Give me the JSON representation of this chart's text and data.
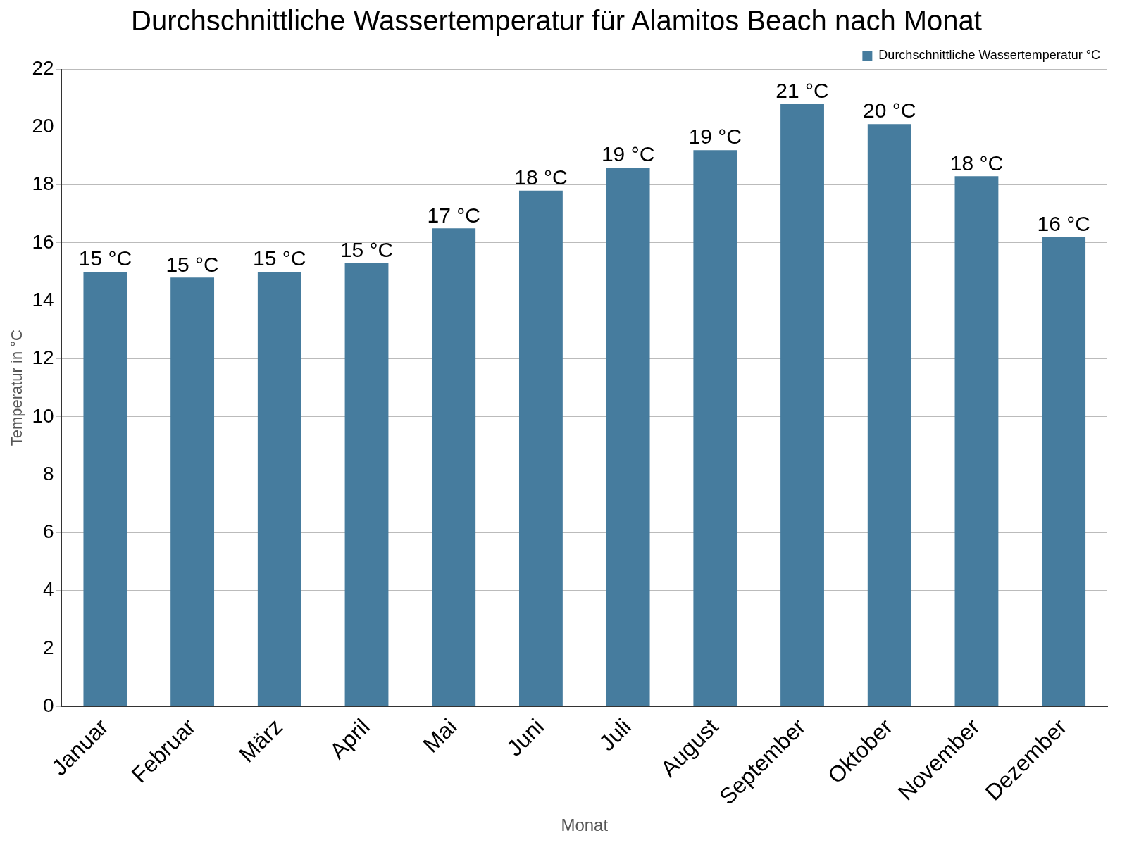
{
  "chart_data": {
    "type": "bar",
    "title": "Durchschnittliche Wassertemperatur für Alamitos Beach nach Monat",
    "xlabel": "Monat",
    "ylabel": "Temperatur in °C",
    "categories": [
      "Januar",
      "Februar",
      "März",
      "April",
      "Mai",
      "Juni",
      "Juli",
      "August",
      "September",
      "Oktober",
      "November",
      "Dezember"
    ],
    "series": [
      {
        "name": "Durchschnittliche Wassertemperatur °C",
        "color": "#467c9e",
        "values": [
          15.0,
          14.8,
          15.0,
          15.3,
          16.5,
          17.8,
          18.6,
          19.2,
          20.8,
          20.1,
          18.3,
          16.2
        ],
        "value_labels": [
          "15 °C",
          "15 °C",
          "15 °C",
          "15 °C",
          "17 °C",
          "18 °C",
          "19 °C",
          "19 °C",
          "21 °C",
          "20 °C",
          "18 °C",
          "16 °C"
        ]
      }
    ],
    "ylim": [
      0,
      22
    ],
    "yticks": [
      0,
      2,
      4,
      6,
      8,
      10,
      12,
      14,
      16,
      18,
      20,
      22
    ],
    "grid": "y",
    "legend": "top right"
  }
}
